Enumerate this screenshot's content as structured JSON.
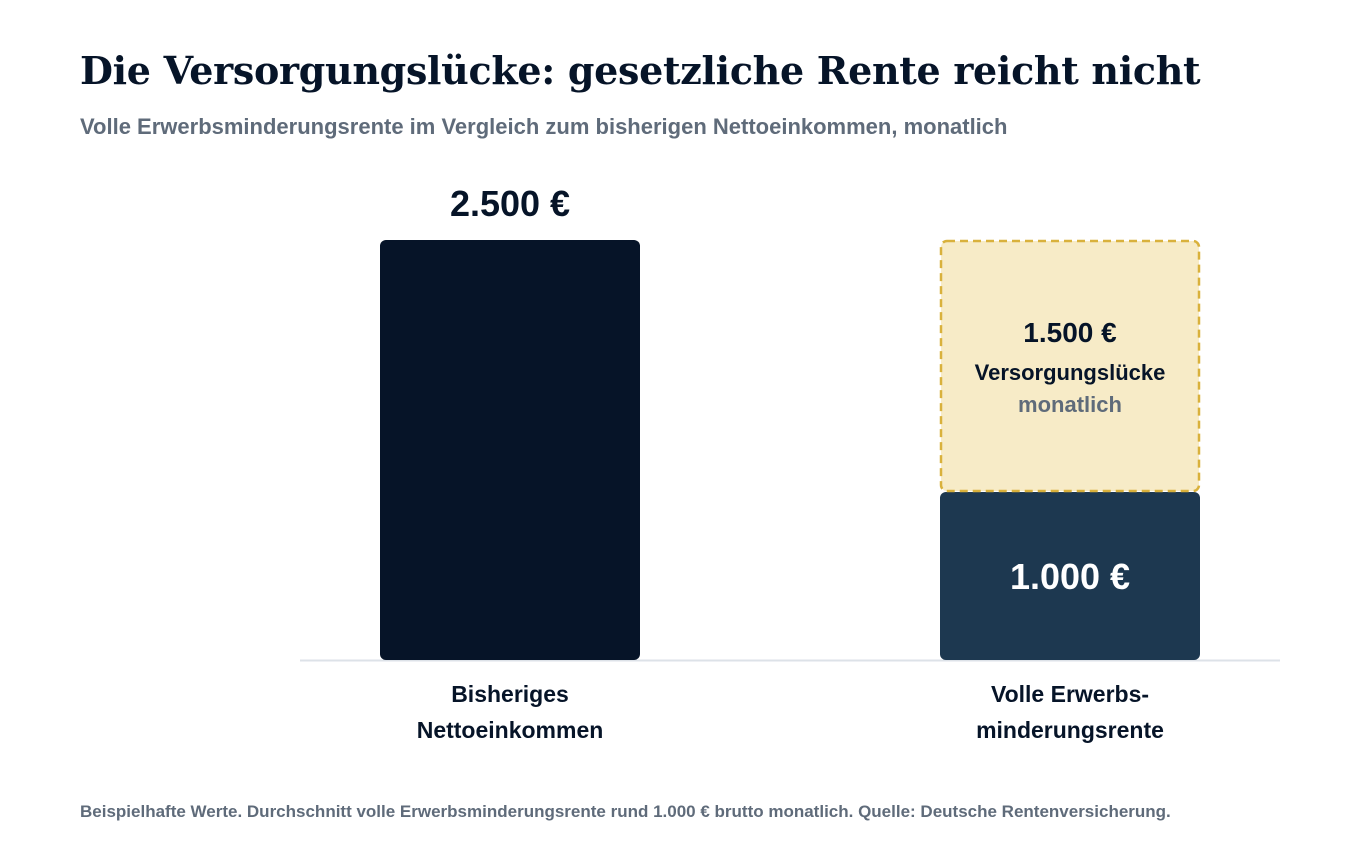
{
  "title": "Die Versorgungslücke: gesetzliche Rente reicht nicht",
  "subtitle": "Volle Erwerbsminderungsrente im Vergleich zum bisherigen Nettoeinkommen, monatlich",
  "footnote": "Beispielhafte Werte. Durchschnitt volle Erwerbsminderungsrente rund 1.000 € brutto monatlich. Quelle: Deutsche Rentenversicherung.",
  "chart_data": {
    "type": "bar",
    "stacked": true,
    "unit": "€ monatlich",
    "ylim": [
      0,
      2500
    ],
    "grid": false,
    "categories": [
      [
        "Bisheriges",
        "Nettoeinkommen"
      ],
      [
        "Volle Erwerbs-",
        "minderungsrente"
      ]
    ],
    "bars": [
      {
        "segments": [
          {
            "value": 2500,
            "label": "2.500 €",
            "label_position": "above",
            "color": "#061428",
            "style": "solid"
          }
        ]
      },
      {
        "segments": [
          {
            "value": 1000,
            "label": "1.000 €",
            "label_position": "inside",
            "color": "#1d3850",
            "style": "solid"
          },
          {
            "value": 1500,
            "label": "1.500 €",
            "label_position": "inside",
            "sublabel": "Versorgungslücke",
            "note": "monatlich",
            "color": "#f7ebc7",
            "border": "#d9b13c",
            "style": "dashed"
          }
        ]
      }
    ]
  }
}
